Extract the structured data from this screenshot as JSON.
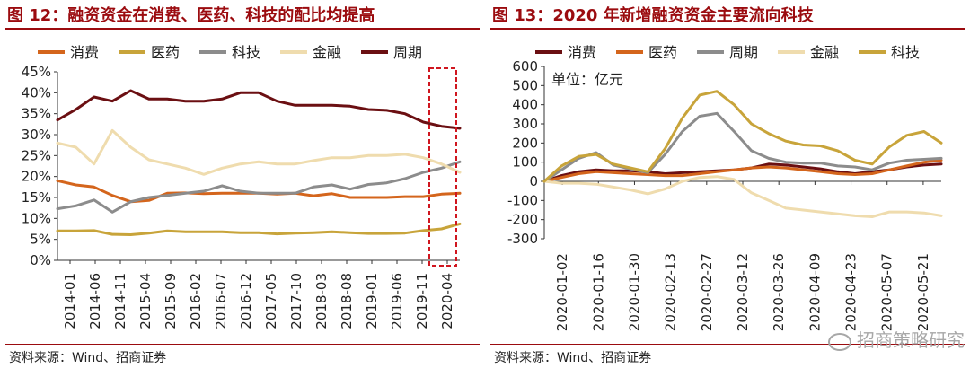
{
  "left": {
    "title": "图 12：融资资金在消费、医药、科技的配比均提高",
    "source": "资料来源：Wind、招商证券",
    "chart_data": {
      "type": "line",
      "ylim": [
        0,
        45
      ],
      "y_ticks": [
        "0%",
        "5%",
        "10%",
        "15%",
        "20%",
        "25%",
        "30%",
        "35%",
        "40%",
        "45%"
      ],
      "x_tick_labels": [
        "2014-01",
        "2014-06",
        "2014-11",
        "2015-04",
        "2015-09",
        "2016-02",
        "2016-07",
        "2016-12",
        "2017-05",
        "2017-10",
        "2018-03",
        "2018-08",
        "2019-01",
        "2019-06",
        "2019-11",
        "2020-04"
      ],
      "colors": {
        "消费": "#d4651c",
        "医药": "#c8a43a",
        "科技": "#8c8c8c",
        "金融": "#efdcae",
        "周期": "#6b0f12",
        "highlight": "#d0161f"
      },
      "series": [
        {
          "name": "消费",
          "color": "#d4651c",
          "values": [
            19,
            18,
            17.5,
            15.5,
            14,
            14.3,
            16,
            16.1,
            15.9,
            16,
            16,
            16,
            15.8,
            16,
            15.4,
            15.9,
            15,
            15,
            15,
            15.2,
            15.2,
            15.8,
            16
          ]
        },
        {
          "name": "医药",
          "color": "#c8a43a",
          "values": [
            7,
            7,
            7.1,
            6.2,
            6.1,
            6.5,
            7,
            6.8,
            6.8,
            6.8,
            6.6,
            6.6,
            6.3,
            6.5,
            6.6,
            6.8,
            6.6,
            6.4,
            6.4,
            6.5,
            7.1,
            7.5,
            8.7
          ]
        },
        {
          "name": "科技",
          "color": "#8c8c8c",
          "values": [
            12.3,
            13,
            14.4,
            11.5,
            14,
            15,
            15.5,
            16,
            16.5,
            17.8,
            16.5,
            16,
            16,
            16,
            17.5,
            18,
            17,
            18.1,
            18.5,
            19.5,
            21,
            22,
            23.5
          ]
        },
        {
          "name": "金融",
          "color": "#efdcae",
          "values": [
            28,
            27,
            23,
            31,
            27,
            24,
            23,
            22,
            20.5,
            22,
            23,
            23.5,
            23,
            23,
            23.8,
            24.5,
            24.5,
            25,
            25,
            25.3,
            24.5,
            23,
            21
          ]
        },
        {
          "name": "周期",
          "color": "#6b0f12",
          "values": [
            33.5,
            36,
            39,
            38,
            40.5,
            38.5,
            38.5,
            38,
            38,
            38.5,
            40,
            40,
            38,
            37,
            37,
            37,
            36.8,
            36,
            35.8,
            35,
            33,
            32,
            31.5
          ]
        }
      ]
    }
  },
  "right": {
    "title": "图 13：2020 年新增融资资金主要流向科技",
    "source": "资料来源：Wind、招商证券",
    "watermark": "招商策略研究",
    "unit_note": "单位：亿元",
    "chart_data": {
      "type": "line",
      "ylim": [
        -300,
        600
      ],
      "y_ticks": [
        "-300",
        "-200",
        "-100",
        "0",
        "100",
        "200",
        "300",
        "400",
        "500",
        "600"
      ],
      "x_tick_labels": [
        "2020-01-02",
        "2020-01-16",
        "2020-01-30",
        "2020-02-13",
        "2020-02-27",
        "2020-03-12",
        "2020-03-26",
        "2020-04-09",
        "2020-04-23",
        "2020-05-07",
        "2020-05-21"
      ],
      "colors": {
        "消费": "#6b0f12",
        "医药": "#d4651c",
        "周期": "#8c8c8c",
        "金融": "#efdcae",
        "科技": "#c8a43a"
      },
      "series": [
        {
          "name": "消费",
          "color": "#6b0f12",
          "values": [
            0,
            30,
            50,
            60,
            55,
            55,
            50,
            40,
            45,
            50,
            55,
            60,
            70,
            90,
            85,
            75,
            65,
            50,
            40,
            50,
            60,
            75,
            85,
            90
          ]
        },
        {
          "name": "医药",
          "color": "#d4651c",
          "values": [
            0,
            20,
            40,
            50,
            45,
            40,
            35,
            30,
            30,
            40,
            50,
            60,
            70,
            75,
            70,
            60,
            50,
            40,
            35,
            40,
            60,
            80,
            100,
            110
          ]
        },
        {
          "name": "周期",
          "color": "#8c8c8c",
          "values": [
            0,
            60,
            120,
            150,
            85,
            65,
            45,
            140,
            260,
            340,
            355,
            260,
            160,
            120,
            100,
            95,
            95,
            80,
            75,
            60,
            95,
            110,
            115,
            120
          ]
        },
        {
          "name": "金融",
          "color": "#efdcae",
          "values": [
            0,
            -10,
            -10,
            -15,
            -30,
            -45,
            -65,
            -40,
            0,
            20,
            25,
            10,
            -60,
            -100,
            -140,
            -150,
            -160,
            -170,
            -180,
            -185,
            -160,
            -160,
            -165,
            -180
          ]
        },
        {
          "name": "科技",
          "color": "#c8a43a",
          "values": [
            0,
            80,
            130,
            140,
            90,
            70,
            50,
            170,
            330,
            450,
            470,
            400,
            300,
            250,
            210,
            190,
            185,
            160,
            110,
            90,
            180,
            240,
            260,
            200
          ]
        }
      ]
    }
  }
}
